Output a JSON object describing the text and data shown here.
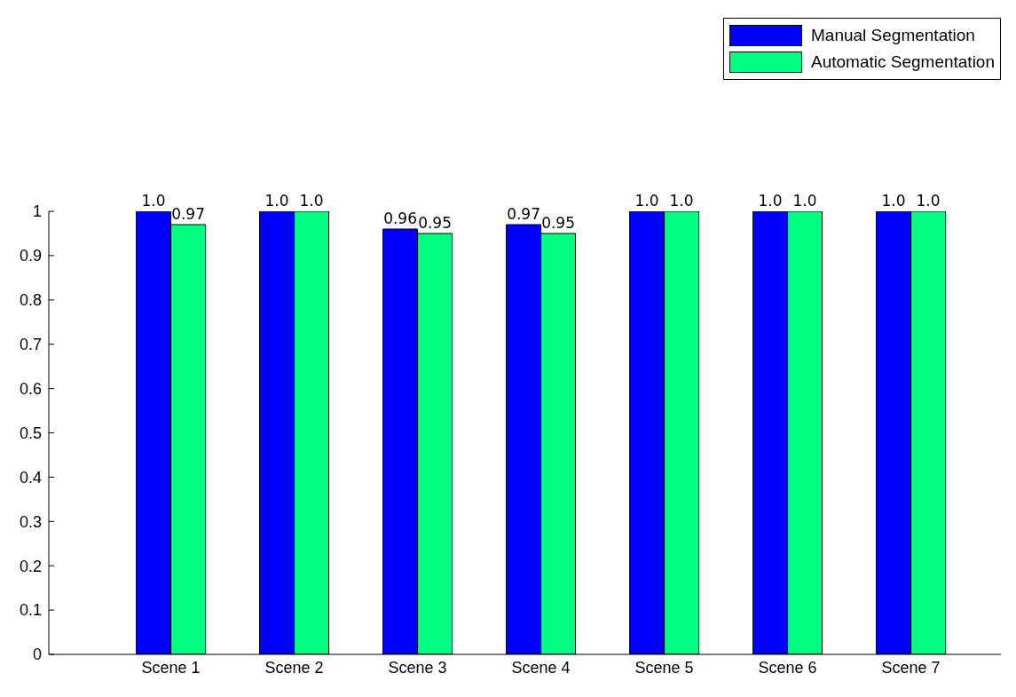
{
  "chart_data": {
    "type": "bar",
    "categories": [
      "Scene 1",
      "Scene 2",
      "Scene 3",
      "Scene 4",
      "Scene 5",
      "Scene 6",
      "Scene 7"
    ],
    "series": [
      {
        "name": "Manual Segmentation",
        "color": "#0000ff",
        "values": [
          1,
          1,
          0.96,
          0.97,
          1,
          1,
          1
        ],
        "value_labels": [
          "1.0",
          "1.0",
          "0.96",
          "0.97",
          "1.0",
          "1.0",
          "1.0"
        ]
      },
      {
        "name": "Automatic Segmentation",
        "color": "#00ff80",
        "values": [
          0.97,
          1,
          0.95,
          0.95,
          1,
          1,
          1
        ],
        "value_labels": [
          "0.97",
          "1.0",
          "0.95",
          "0.95",
          "1.0",
          "1.0",
          "1.0"
        ]
      }
    ],
    "ylim": [
      0,
      1
    ],
    "yticks": [
      0,
      0.1,
      0.2,
      0.3,
      0.4,
      0.5,
      0.6,
      0.7,
      0.8,
      0.9,
      1
    ],
    "grid": false,
    "legend": "top right"
  }
}
